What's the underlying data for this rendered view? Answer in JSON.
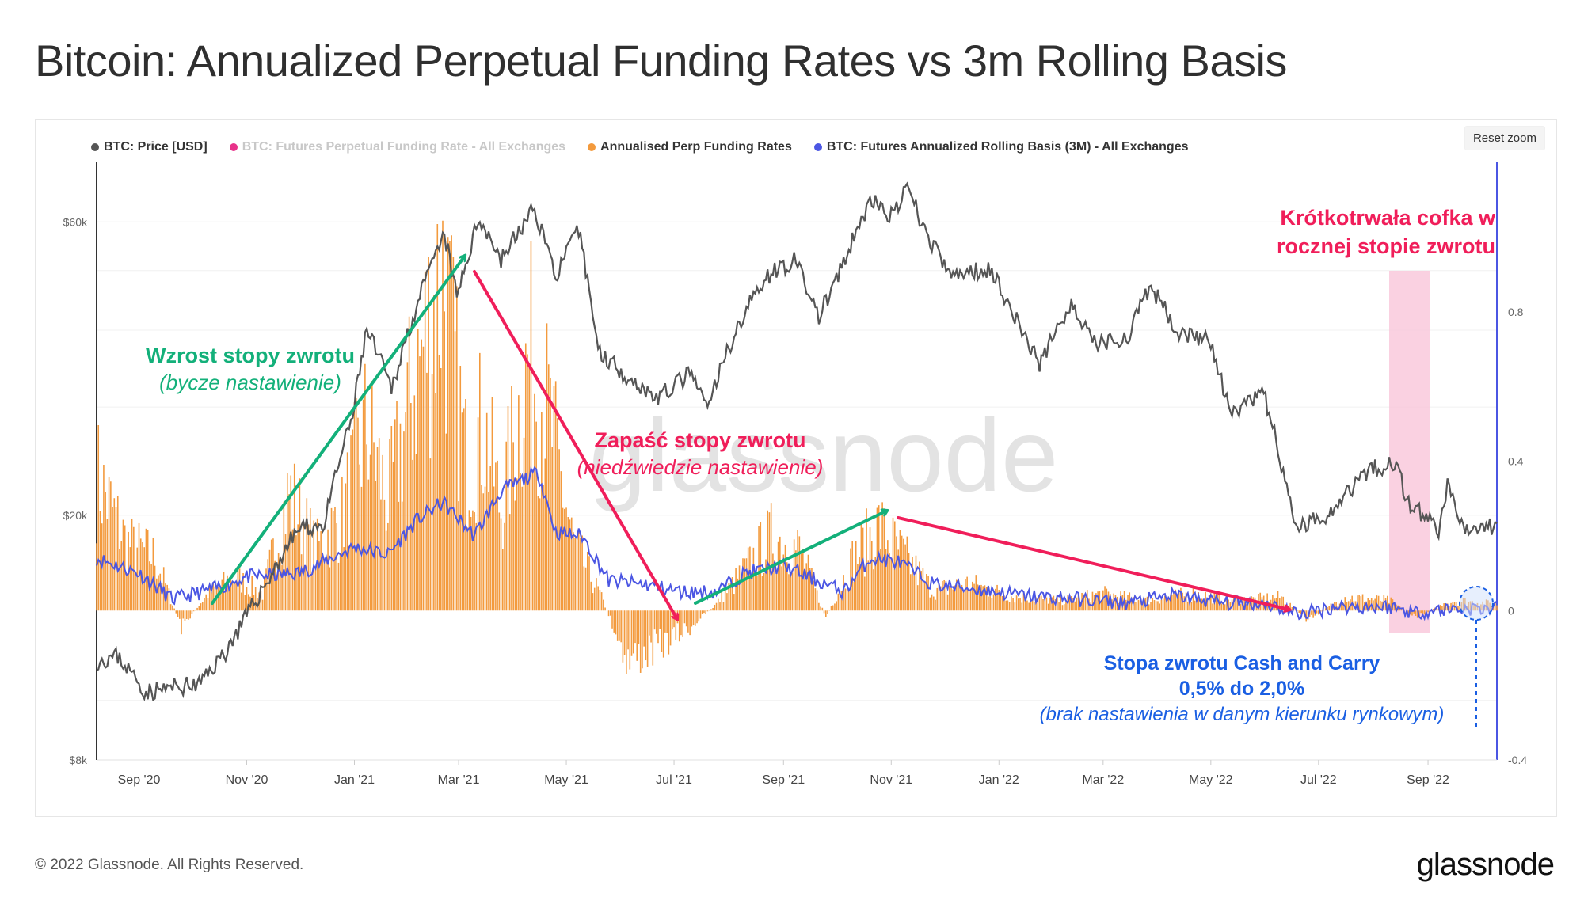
{
  "title": "Bitcoin: Annualized Perpetual Funding Rates vs 3m Rolling Basis",
  "reset_zoom": "Reset zoom",
  "footer": "© 2022 Glassnode. All Rights Reserved.",
  "brand": "glassnode",
  "colors": {
    "price": "#555555",
    "funding_muted": "#e8328a",
    "annualised": "#f39a3d",
    "basis": "#4b56e3",
    "green": "#13b07a",
    "red": "#f01e5a",
    "blue": "#1a5fe3",
    "highlight": "#f9c6da"
  },
  "legend": [
    {
      "label": "BTC: Price [USD]",
      "color": "#555555",
      "muted": false
    },
    {
      "label": "BTC: Futures Perpetual Funding Rate - All Exchanges",
      "color": "#e8328a",
      "muted": true
    },
    {
      "label": "Annualised Perp Funding Rates",
      "color": "#f39a3d",
      "muted": false
    },
    {
      "label": "BTC: Futures Annualized Rolling Basis (3M) - All Exchanges",
      "color": "#4b56e3",
      "muted": false
    }
  ],
  "annotations": {
    "bull_title": "Wzrost stopy zwrotu",
    "bull_sub": "(bycze nastawienie)",
    "bear_title": "Zapaść stopy zwrotu",
    "bear_sub": "(niedźwiedzie nastawienie)",
    "blip_line1": "Krótkotrwała cofka w",
    "blip_line2": "rocznej stopie zwrotu",
    "cash_line1": "Stopa zwrotu Cash and Carry",
    "cash_line2": "0,5% do 2,0%",
    "cash_sub": "(brak nastawienia w danym kierunku rynkowym)"
  },
  "watermark": "glassnode",
  "chart_data": {
    "type": "line",
    "x_ticks": [
      "Sep '20",
      "Nov '20",
      "Jan '21",
      "Mar '21",
      "May '21",
      "Jul '21",
      "Sep '21",
      "Nov '21",
      "Jan '22",
      "Mar '22",
      "May '22",
      "Jul '22",
      "Sep '22"
    ],
    "y_left_ticks": [
      "$60k",
      "$20k",
      "$8k"
    ],
    "y_left_scale": "log",
    "y_left_range": [
      8000,
      75000
    ],
    "y_right_ticks": [
      "0.8",
      "0.4",
      "0",
      "-0.4"
    ],
    "y_right_range": [
      -0.4,
      1.2
    ],
    "x_range": [
      "2020-08-08",
      "2022-10-10"
    ],
    "price_series": {
      "name": "BTC: Price [USD]",
      "points": [
        [
          "2020-08-08",
          11600
        ],
        [
          "2020-08-20",
          11800
        ],
        [
          "2020-09-05",
          10300
        ],
        [
          "2020-09-20",
          10500
        ],
        [
          "2020-10-05",
          10600
        ],
        [
          "2020-10-20",
          12000
        ],
        [
          "2020-11-01",
          13700
        ],
        [
          "2020-11-15",
          16000
        ],
        [
          "2020-11-30",
          19000
        ],
        [
          "2020-12-15",
          19300
        ],
        [
          "2020-12-31",
          29000
        ],
        [
          "2021-01-08",
          40000
        ],
        [
          "2021-01-22",
          32000
        ],
        [
          "2021-02-08",
          46000
        ],
        [
          "2021-02-21",
          57000
        ],
        [
          "2021-02-28",
          45000
        ],
        [
          "2021-03-13",
          61000
        ],
        [
          "2021-03-25",
          52000
        ],
        [
          "2021-04-13",
          63000
        ],
        [
          "2021-04-25",
          49000
        ],
        [
          "2021-05-08",
          58000
        ],
        [
          "2021-05-19",
          37000
        ],
        [
          "2021-06-08",
          33000
        ],
        [
          "2021-06-22",
          31000
        ],
        [
          "2021-07-10",
          34000
        ],
        [
          "2021-07-20",
          29800
        ],
        [
          "2021-08-05",
          40000
        ],
        [
          "2021-08-22",
          49000
        ],
        [
          "2021-09-07",
          52000
        ],
        [
          "2021-09-21",
          42000
        ],
        [
          "2021-10-05",
          51000
        ],
        [
          "2021-10-20",
          65000
        ],
        [
          "2021-11-02",
          61000
        ],
        [
          "2021-11-10",
          68000
        ],
        [
          "2021-11-20",
          58000
        ],
        [
          "2021-12-04",
          49000
        ],
        [
          "2021-12-27",
          50500
        ],
        [
          "2022-01-10",
          42000
        ],
        [
          "2022-01-24",
          35000
        ],
        [
          "2022-02-10",
          44000
        ],
        [
          "2022-02-24",
          38000
        ],
        [
          "2022-03-15",
          39000
        ],
        [
          "2022-03-28",
          47000
        ],
        [
          "2022-04-12",
          40000
        ],
        [
          "2022-04-30",
          38500
        ],
        [
          "2022-05-12",
          29000
        ],
        [
          "2022-05-31",
          31500
        ],
        [
          "2022-06-13",
          22000
        ],
        [
          "2022-06-18",
          19000
        ],
        [
          "2022-07-05",
          20000
        ],
        [
          "2022-07-30",
          23800
        ],
        [
          "2022-08-15",
          24300
        ],
        [
          "2022-08-20",
          21000
        ],
        [
          "2022-09-07",
          19000
        ],
        [
          "2022-09-12",
          22300
        ],
        [
          "2022-09-22",
          18800
        ],
        [
          "2022-10-10",
          19200
        ]
      ]
    },
    "basis_series": {
      "name": "BTC: Futures Annualized Rolling Basis (3M) - All Exchanges",
      "points": [
        [
          "2020-08-08",
          0.14
        ],
        [
          "2020-09-01",
          0.1
        ],
        [
          "2020-09-20",
          0.03
        ],
        [
          "2020-10-15",
          0.06
        ],
        [
          "2020-11-01",
          0.09
        ],
        [
          "2020-12-01",
          0.1
        ],
        [
          "2021-01-01",
          0.17
        ],
        [
          "2021-01-20",
          0.15
        ],
        [
          "2021-02-05",
          0.24
        ],
        [
          "2021-02-20",
          0.29
        ],
        [
          "2021-03-10",
          0.2
        ],
        [
          "2021-03-25",
          0.32
        ],
        [
          "2021-04-15",
          0.37
        ],
        [
          "2021-04-25",
          0.21
        ],
        [
          "2021-05-10",
          0.2
        ],
        [
          "2021-05-25",
          0.08
        ],
        [
          "2021-06-15",
          0.07
        ],
        [
          "2021-07-05",
          0.05
        ],
        [
          "2021-07-25",
          0.05
        ],
        [
          "2021-08-10",
          0.1
        ],
        [
          "2021-09-01",
          0.12
        ],
        [
          "2021-09-20",
          0.08
        ],
        [
          "2021-10-05",
          0.05
        ],
        [
          "2021-10-20",
          0.14
        ],
        [
          "2021-11-05",
          0.13
        ],
        [
          "2021-11-25",
          0.07
        ],
        [
          "2021-12-15",
          0.06
        ],
        [
          "2022-01-15",
          0.04
        ],
        [
          "2022-02-15",
          0.03
        ],
        [
          "2022-03-15",
          0.02
        ],
        [
          "2022-04-10",
          0.04
        ],
        [
          "2022-05-10",
          0.02
        ],
        [
          "2022-06-01",
          0.02
        ],
        [
          "2022-06-20",
          -0.01
        ],
        [
          "2022-07-10",
          0.01
        ],
        [
          "2022-08-10",
          0.01
        ],
        [
          "2022-08-25",
          -0.005
        ],
        [
          "2022-09-15",
          0.005
        ],
        [
          "2022-10-10",
          0.005
        ]
      ]
    },
    "annualised_series": {
      "name": "Annualised Perp Funding Rates",
      "points": [
        [
          "2020-08-08",
          0.4
        ],
        [
          "2020-08-25",
          0.2
        ],
        [
          "2020-09-10",
          0.16
        ],
        [
          "2020-09-25",
          -0.05
        ],
        [
          "2020-10-10",
          0.05
        ],
        [
          "2020-10-25",
          0.1
        ],
        [
          "2020-11-10",
          0.05
        ],
        [
          "2020-11-25",
          0.35
        ],
        [
          "2020-12-10",
          0.18
        ],
        [
          "2020-12-25",
          0.28
        ],
        [
          "2021-01-08",
          0.55
        ],
        [
          "2021-01-20",
          0.32
        ],
        [
          "2021-02-05",
          0.7
        ],
        [
          "2021-02-20",
          1.0
        ],
        [
          "2021-03-05",
          0.45
        ],
        [
          "2021-03-15",
          0.55
        ],
        [
          "2021-03-25",
          0.3
        ],
        [
          "2021-04-10",
          0.75
        ],
        [
          "2021-04-20",
          0.6
        ],
        [
          "2021-05-05",
          0.2
        ],
        [
          "2021-05-20",
          0.05
        ],
        [
          "2021-06-05",
          -0.15
        ],
        [
          "2021-06-25",
          -0.1
        ],
        [
          "2021-07-10",
          -0.05
        ],
        [
          "2021-07-25",
          0.02
        ],
        [
          "2021-08-10",
          0.12
        ],
        [
          "2021-08-25",
          0.22
        ],
        [
          "2021-09-10",
          0.18
        ],
        [
          "2021-09-25",
          -0.02
        ],
        [
          "2021-10-10",
          0.15
        ],
        [
          "2021-10-25",
          0.25
        ],
        [
          "2021-11-10",
          0.15
        ],
        [
          "2021-11-25",
          0.06
        ],
        [
          "2021-12-15",
          0.08
        ],
        [
          "2022-01-10",
          0.04
        ],
        [
          "2022-02-05",
          0.03
        ],
        [
          "2022-03-01",
          0.05
        ],
        [
          "2022-03-25",
          0.03
        ],
        [
          "2022-04-20",
          0.05
        ],
        [
          "2022-05-15",
          0.03
        ],
        [
          "2022-06-10",
          0.04
        ],
        [
          "2022-06-25",
          -0.03
        ],
        [
          "2022-07-15",
          0.04
        ],
        [
          "2022-08-10",
          0.03
        ],
        [
          "2022-08-25",
          -0.02
        ],
        [
          "2022-09-15",
          0.03
        ],
        [
          "2022-10-10",
          0.02
        ]
      ]
    }
  }
}
